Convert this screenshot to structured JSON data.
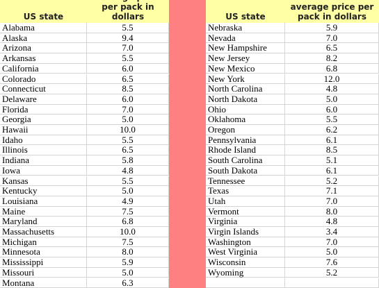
{
  "left_table": {
    "headers": [
      "US state",
      "average price per pack in dollars"
    ],
    "rows": [
      [
        "Alabama",
        "5.5"
      ],
      [
        "Alaska",
        "9.4"
      ],
      [
        "Arizona",
        "7.0"
      ],
      [
        "Arkansas",
        "5.5"
      ],
      [
        "California",
        "6.0"
      ],
      [
        "Colorado",
        "6.5"
      ],
      [
        "Connecticut",
        "8.5"
      ],
      [
        "Delaware",
        "6.0"
      ],
      [
        "Florida",
        "7.0"
      ],
      [
        "Georgia",
        "5.0"
      ],
      [
        "Hawaii",
        "10.0"
      ],
      [
        "Idaho",
        "5.5"
      ],
      [
        "Illinois",
        "6.5"
      ],
      [
        "Indiana",
        "5.8"
      ],
      [
        "Iowa",
        "4.8"
      ],
      [
        "Kansas",
        "5.5"
      ],
      [
        "Kentucky",
        "5.0"
      ],
      [
        "Louisiana",
        "4.9"
      ],
      [
        "Maine",
        "7.5"
      ],
      [
        "Maryland",
        "6.8"
      ],
      [
        "Massachusetts",
        "10.0"
      ],
      [
        "Michigan",
        "7.5"
      ],
      [
        "Minnesota",
        "8.0"
      ],
      [
        "Mississippi",
        "5.9"
      ],
      [
        "Missouri",
        "5.0"
      ],
      [
        "Montana",
        "6.3"
      ]
    ]
  },
  "right_table": {
    "headers": [
      "US state",
      "average price per pack in dollars"
    ],
    "rows": [
      [
        "Nebraska",
        "5.9"
      ],
      [
        "Nevada",
        "7.0"
      ],
      [
        "New Hampshire",
        "6.5"
      ],
      [
        "New Jersey",
        "8.2"
      ],
      [
        "New Mexico",
        "6.8"
      ],
      [
        "New York",
        "12.0"
      ],
      [
        "North Carolina",
        "4.8"
      ],
      [
        "North Dakota",
        "5.0"
      ],
      [
        "Ohio",
        "6.0"
      ],
      [
        "Oklahoma",
        "5.5"
      ],
      [
        "Oregon",
        "6.2"
      ],
      [
        "Pennsylvania",
        "6.1"
      ],
      [
        "Rhode Island",
        "8.5"
      ],
      [
        "South Carolina",
        "5.1"
      ],
      [
        "South Dakota",
        "6.1"
      ],
      [
        "Tennessee",
        "5.2"
      ],
      [
        "Texas",
        "7.1"
      ],
      [
        "Utah",
        "7.0"
      ],
      [
        "Vermont",
        "8.0"
      ],
      [
        "Virginia",
        "4.8"
      ],
      [
        "Virgin Islands",
        "3.4"
      ],
      [
        "Washington",
        "7.0"
      ],
      [
        "West Virginia",
        "5.0"
      ],
      [
        "Wisconsin",
        "7.6"
      ],
      [
        "Wyoming",
        "5.2"
      ]
    ]
  }
}
